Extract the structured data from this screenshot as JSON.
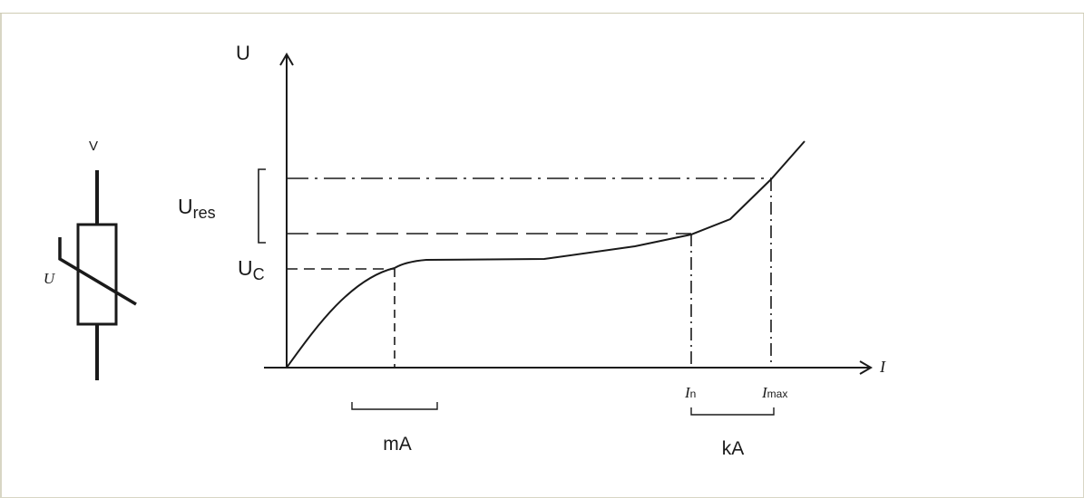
{
  "symbol": {
    "top_label": "V",
    "side_label": "U"
  },
  "axes": {
    "y_label": "U",
    "x_label": "I"
  },
  "voltage_labels": {
    "res_main": "U",
    "res_sub": "res",
    "c_main": "U",
    "c_sub": "C"
  },
  "current_labels": {
    "n_main": "I",
    "n_sub": "n",
    "max_main": "I",
    "max_sub": "max"
  },
  "range_labels": {
    "low": "mA",
    "high": "kA"
  },
  "colors": {
    "line": "#1a1a1a",
    "frame": "#d8d6c4"
  }
}
